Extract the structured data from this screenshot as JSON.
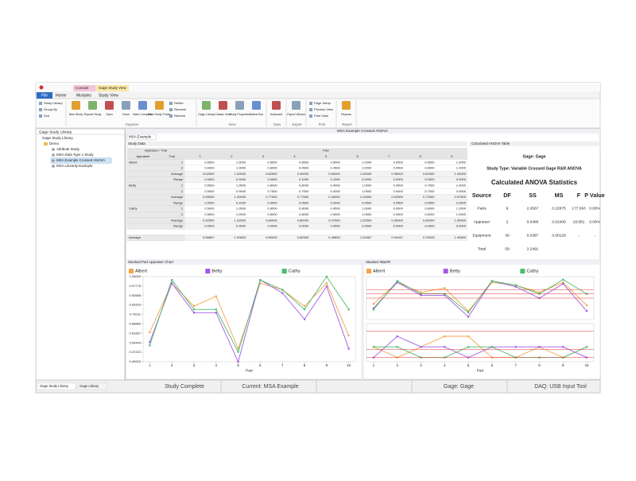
{
  "ribbon": {
    "tabs": [
      "File",
      "Home",
      "Modules",
      "Study View"
    ],
    "context_tabs": [
      "Console",
      "Gage Study View"
    ],
    "groups": [
      {
        "small": [
          "Study Library",
          "Group By",
          "Sort"
        ]
      },
      {
        "label": "Organize",
        "buttons": [
          "New Study",
          "Repeat Study",
          "Open",
          "Close",
          "Mark Complete",
          "New Study Folder"
        ],
        "small": [
          "Delete",
          "Rename",
          "Refresh"
        ]
      },
      {
        "label": "View",
        "buttons": [
          "Gage Library",
          "Classic View",
          "Study Properties",
          "Status Bar"
        ]
      },
      {
        "label": "Data",
        "buttons": [
          "Keyboard"
        ]
      },
      {
        "label": "Export",
        "buttons": [
          "Export Wizard"
        ]
      },
      {
        "label": "Print",
        "small": [
          "Page Setup",
          "Preview View",
          "Print View"
        ]
      },
      {
        "label": "Report",
        "buttons": [
          "Reports"
        ]
      }
    ]
  },
  "library": {
    "title": "Gage Study Library",
    "root": "Gage Study Library",
    "folder": "Demo",
    "items": [
      "Attribute Study",
      "MSA Data Type 1 Study",
      "MSA Example Crossed ANOVA",
      "MSA Linearity Example"
    ],
    "tabs": [
      "Gage Study Library",
      "Gage Library"
    ]
  },
  "document": {
    "title": "MSA Example Crossed ANOVA",
    "tab": "MSA Example"
  },
  "study_data": {
    "title": "Study Data",
    "header": "Appraiser / Trial",
    "part_label": "Part",
    "columns": [
      "Appraiser",
      "Trial",
      "1",
      "2",
      "3",
      "4",
      "5",
      "6",
      "7",
      "8",
      "9"
    ],
    "groups": [
      {
        "appraiser": "Albert",
        "rows": [
          {
            "trial": "1",
            "values": [
              "0.6500",
              "1.0000",
              "0.8500",
              "0.8500",
              "0.5500",
              "1.0000",
              "0.9500",
              "0.8500",
              "1.0000"
            ]
          },
          {
            "trial": "2",
            "values": [
              "0.6000",
              "1.0000",
              "0.8000",
              "0.9500",
              "0.4500",
              "1.0000",
              "0.9500",
              "0.8000",
              "1.0000"
            ]
          },
          {
            "trial": "Average",
            "values": [
              "0.62500",
              "1.00000",
              "0.82500",
              "0.90000",
              "0.50000",
              "1.00000",
              "0.95000",
              "0.82500",
              "1.00000"
            ]
          },
          {
            "trial": "Range",
            "values": [
              "0.0500",
              "0.0000",
              "0.0500",
              "0.1000",
              "0.1000",
              "0.0000",
              "0.0000",
              "0.0500",
              "0.0000"
            ]
          }
        ]
      },
      {
        "appraiser": "Betty",
        "rows": [
          {
            "trial": "1",
            "values": [
              "0.5500",
              "1.0500",
              "0.8000",
              "0.8000",
              "0.4000",
              "1.0000",
              "0.9500",
              "0.7500",
              "1.0000"
            ]
          },
          {
            "trial": "2",
            "values": [
              "0.5500",
              "0.9500",
              "0.7500",
              "0.7500",
              "0.4000",
              "1.0500",
              "0.9000",
              "0.7000",
              "0.9500"
            ]
          },
          {
            "trial": "Average",
            "values": [
              "0.55000",
              "1.00000",
              "0.77500",
              "0.77500",
              "0.40000",
              "1.02500",
              "0.92500",
              "0.72500",
              "0.97500"
            ]
          },
          {
            "trial": "Range",
            "values": [
              "0.0000",
              "0.1000",
              "0.0500",
              "0.0500",
              "0.0000",
              "0.0500",
              "0.0500",
              "0.0500",
              "0.0500"
            ]
          }
        ]
      },
      {
        "appraiser": "Cathy",
        "rows": [
          {
            "trial": "1",
            "values": [
              "0.5000",
              "1.0500",
              "0.8000",
              "0.8000",
              "0.4500",
              "1.0000",
              "0.9500",
              "0.8000",
              "1.0500"
            ]
          },
          {
            "trial": "2",
            "values": [
              "0.5500",
              "1.0000",
              "0.8000",
              "0.8000",
              "0.5000",
              "1.0500",
              "0.9500",
              "0.8000",
              "1.0500"
            ]
          },
          {
            "trial": "Average",
            "values": [
              "0.52500",
              "1.02500",
              "0.80000",
              "0.80000",
              "0.47500",
              "1.02500",
              "0.95000",
              "0.80000",
              "1.05000"
            ]
          },
          {
            "trial": "Range",
            "values": [
              "0.0500",
              "0.0500",
              "0.0000",
              "0.0000",
              "0.0500",
              "0.0500",
              "0.0000",
              "0.0000",
              "0.0000"
            ]
          }
        ]
      }
    ],
    "average": {
      "label": "Average",
      "values": [
        "0.56667",
        "1.00833",
        "0.80000",
        "0.82500",
        "0.45833",
        "1.01667",
        "0.94167",
        "0.78333",
        "1.00833"
      ]
    }
  },
  "anova": {
    "title": "Calculated ANOVA Table",
    "gage": "Gage: Gage",
    "study_type": "Study Type: Variable Crossed Gage R&R ANOVA",
    "heading": "Calculated ANOVA Statistics",
    "columns": [
      "Source",
      "DF",
      "SS",
      "MS",
      "F",
      "P Value"
    ],
    "rows": [
      [
        "Parts",
        "9",
        "2.0567",
        "0.22875",
        "177.093",
        "0.00%"
      ],
      [
        "Appraiser",
        "2",
        "0.0480",
        "0.02400",
        "18.581",
        "0.00%"
      ],
      [
        "Equipment",
        "30",
        "0.0387",
        "0.00129",
        "-",
        "-"
      ],
      [
        "Total",
        "59",
        "2.2491"
      ]
    ]
  },
  "chart_data": [
    {
      "type": "line",
      "title": "Stacked Part Appraiser Chart",
      "x_label": "Part",
      "x": [
        1,
        2,
        3,
        4,
        5,
        6,
        7,
        8,
        9,
        10
      ],
      "xlim": [
        0.7,
        10.3
      ],
      "ylim": [
        0.4,
        1.05
      ],
      "yticks": [
        {
          "value": 1.05,
          "label": "1.05000"
        },
        {
          "value": 0.97778,
          "label": "0.97778"
        },
        {
          "value": 0.90556,
          "label": "0.90556"
        },
        {
          "value": 0.83333,
          "label": "0.83333"
        },
        {
          "value": 0.76111,
          "label": "0.76111"
        },
        {
          "value": 0.68889,
          "label": "0.68889"
        },
        {
          "value": 0.61667,
          "label": "0.61667"
        },
        {
          "value": 0.54444,
          "label": "0.54444"
        },
        {
          "value": 0.47222,
          "label": "0.47222"
        },
        {
          "value": 0.4,
          "label": "0.40000"
        }
      ],
      "series": [
        {
          "name": "Albert",
          "color": "#f5a34a",
          "values": [
            0.625,
            1.0,
            0.825,
            0.9,
            0.5,
            1.0,
            0.95,
            0.825,
            1.0,
            0.6
          ]
        },
        {
          "name": "Betty",
          "color": "#a259e6",
          "values": [
            0.55,
            1.0,
            0.775,
            0.775,
            0.4,
            1.025,
            0.925,
            0.725,
            0.975,
            0.5
          ]
        },
        {
          "name": "Cathy",
          "color": "#4cbb6c",
          "values": [
            0.525,
            1.025,
            0.8,
            0.8,
            0.475,
            1.025,
            0.95,
            0.8,
            1.05,
            0.8
          ]
        }
      ]
    },
    {
      "type": "xbar-r",
      "title": "Stacked XBar/R",
      "x_label": "Part",
      "x": [
        1,
        2,
        3,
        4,
        5,
        6,
        7,
        8,
        9,
        10
      ],
      "xlim": [
        0.7,
        10.3
      ],
      "ylim": [
        0.35,
        1.1
      ],
      "range_ylim": [
        -0.02,
        0.16
      ],
      "limits": [
        0.875,
        0.8036,
        0.725
      ],
      "range_limits": [
        0.125,
        0.0383,
        0
      ],
      "limit_color": "#e03030",
      "series": [
        {
          "name": "Albert",
          "color": "#f5a34a",
          "values": [
            0.625,
            1.0,
            0.825,
            0.9,
            0.5,
            1.0,
            0.95,
            0.825,
            1.0,
            0.6
          ],
          "range_values": [
            0.05,
            0,
            0.05,
            0.1,
            0.1,
            0,
            0,
            0.05,
            0,
            0.05
          ]
        },
        {
          "name": "Betty",
          "color": "#a259e6",
          "values": [
            0.55,
            1.0,
            0.775,
            0.775,
            0.4,
            1.025,
            0.925,
            0.725,
            0.975,
            0.5
          ],
          "range_values": [
            0,
            0.1,
            0.05,
            0.05,
            0,
            0.05,
            0.05,
            0.05,
            0.05,
            0
          ]
        },
        {
          "name": "Cathy",
          "color": "#4cbb6c",
          "values": [
            0.525,
            1.025,
            0.8,
            0.8,
            0.475,
            1.025,
            0.95,
            0.8,
            1.05,
            0.8
          ],
          "range_values": [
            0.05,
            0.05,
            0,
            0,
            0.05,
            0.05,
            0,
            0,
            0,
            0.05
          ]
        }
      ]
    }
  ],
  "status_bar": [
    "Study Complete",
    "Current: MSA Example",
    "Gage: Gage",
    "DAQ: USB Input Tool"
  ]
}
